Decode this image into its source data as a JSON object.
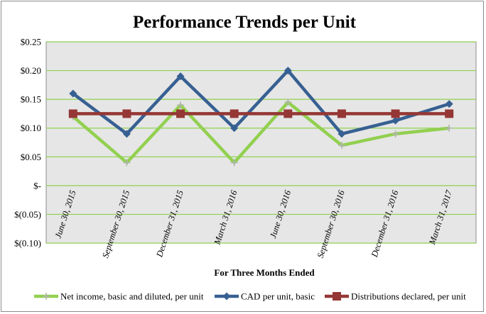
{
  "chart_data": {
    "type": "line",
    "title": "Performance Trends per Unit",
    "xlabel": "For Three Months Ended",
    "ylabel": "",
    "categories": [
      "June 30, 2015",
      "September 30, 2015",
      "December 31, 2015",
      "March 31, 2016",
      "June 30, 2016",
      "September 30, 2016",
      "December 31, 2016",
      "March 31, 2017"
    ],
    "ylim": [
      -0.1,
      0.25
    ],
    "yticks": [
      {
        "value": 0.25,
        "label": "$0.25"
      },
      {
        "value": 0.2,
        "label": "$0.20"
      },
      {
        "value": 0.15,
        "label": "$0.15"
      },
      {
        "value": 0.1,
        "label": "$0.10"
      },
      {
        "value": 0.05,
        "label": "$0.05"
      },
      {
        "value": 0.0,
        "label": "$-"
      },
      {
        "value": -0.05,
        "label": "$(0.05)"
      },
      {
        "value": -0.1,
        "label": "$(0.10)"
      }
    ],
    "grid": true,
    "legend_position": "bottom",
    "series": [
      {
        "name": "Net income, basic and diluted, per unit",
        "color": "#92d050",
        "marker": "plus",
        "values": [
          0.12,
          0.04,
          0.14,
          0.04,
          0.145,
          0.07,
          0.09,
          0.1
        ]
      },
      {
        "name": "CAD per unit, basic",
        "color": "#376092",
        "marker": "diamond",
        "values": [
          0.16,
          0.09,
          0.19,
          0.1,
          0.2,
          0.09,
          0.113,
          0.142
        ]
      },
      {
        "name": "Distributions declared, per unit",
        "color": "#953735",
        "marker": "square",
        "values": [
          0.125,
          0.125,
          0.125,
          0.125,
          0.125,
          0.125,
          0.125,
          0.125
        ]
      }
    ]
  },
  "colors": {
    "plot_background": "#e6e6e6",
    "gridline": "#8fd14f"
  }
}
